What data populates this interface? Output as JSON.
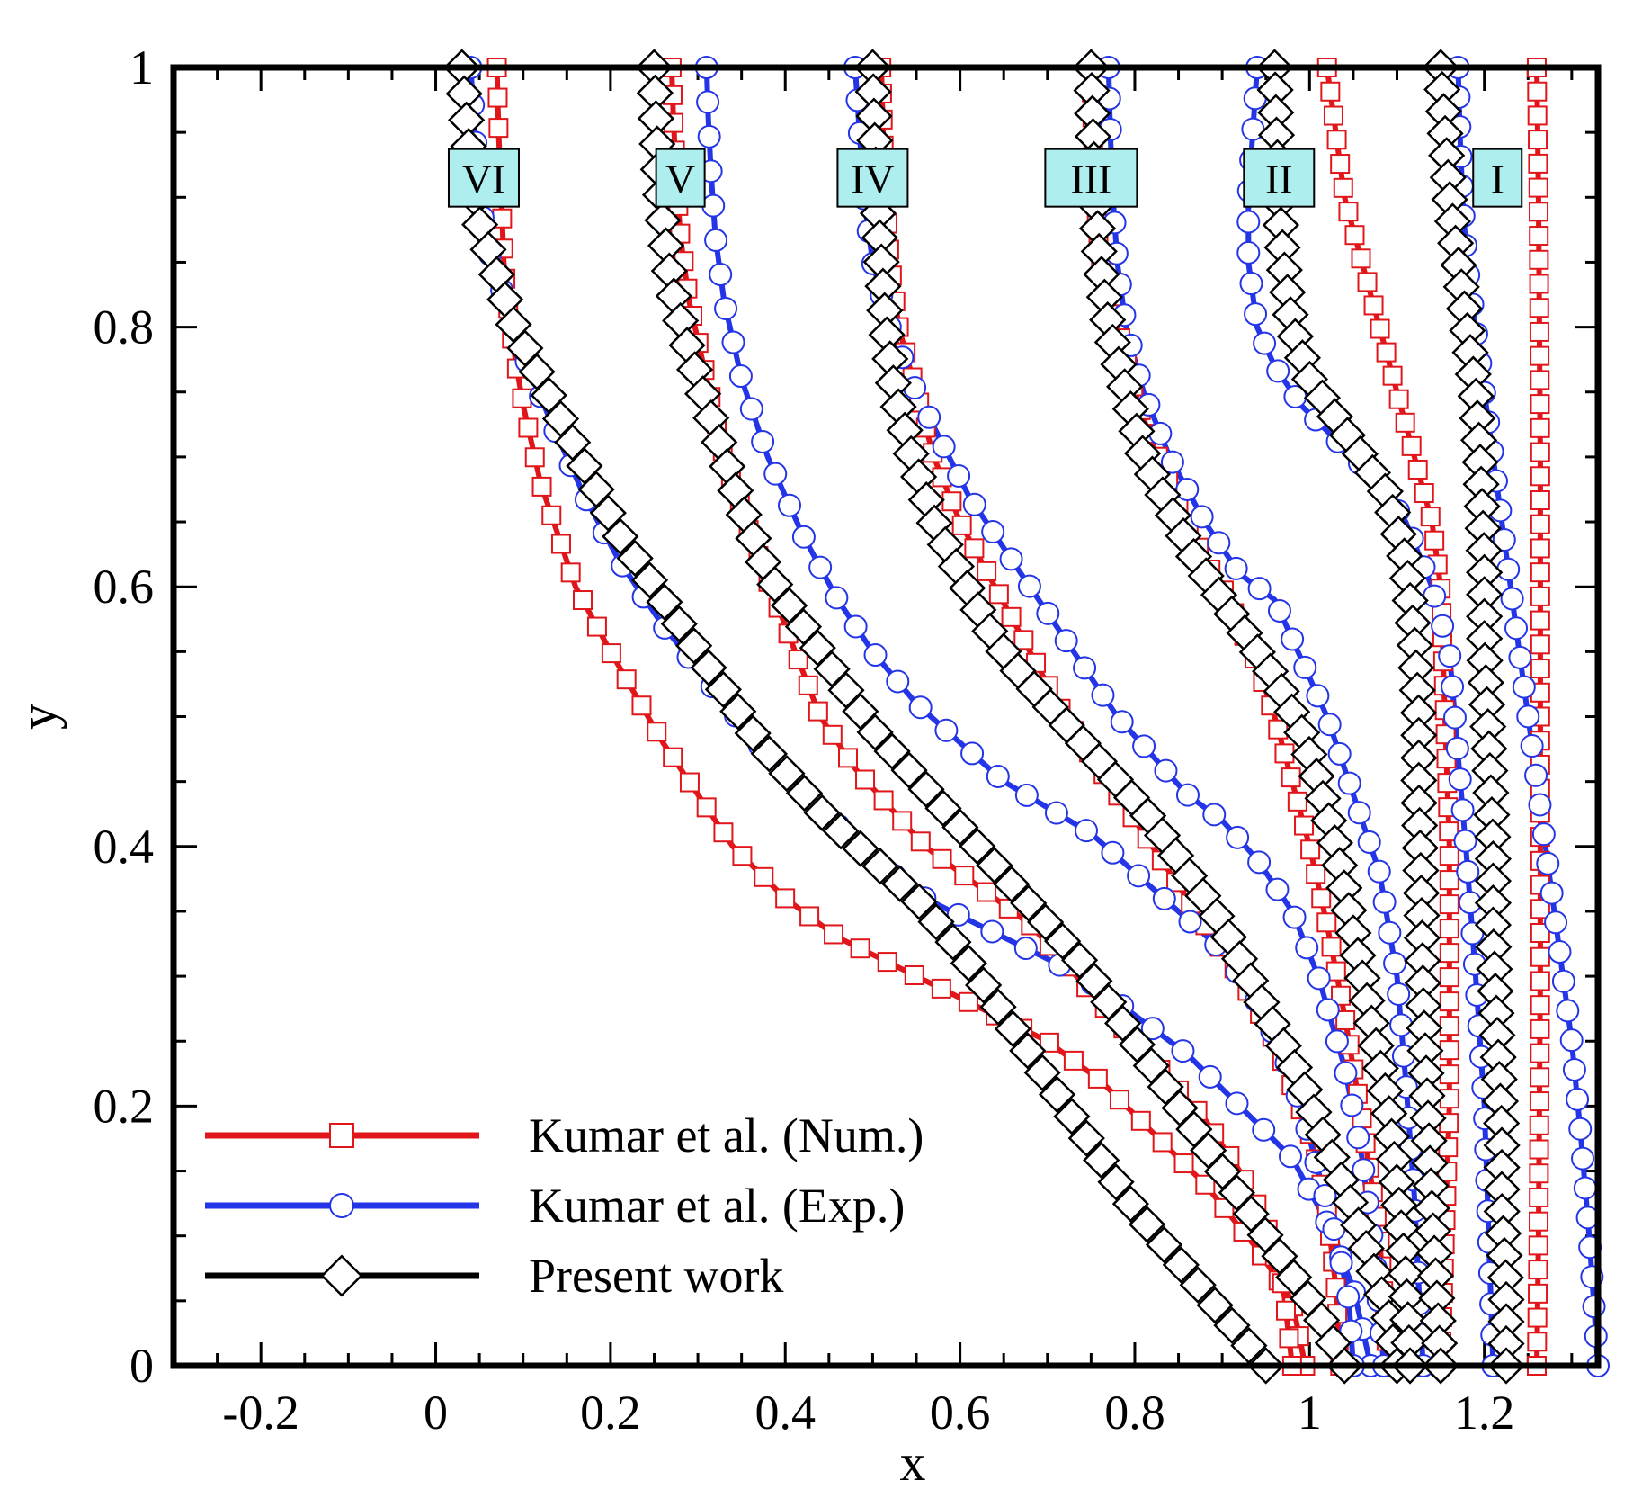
{
  "chart_data": {
    "type": "line",
    "title": "",
    "xlabel": "x",
    "ylabel": "y",
    "xlim": [
      -0.3,
      1.33
    ],
    "ylim": [
      0,
      1
    ],
    "x_ticks": [
      -0.2,
      0,
      0.2,
      0.4,
      0.6,
      0.8,
      1,
      1.2
    ],
    "x_tick_labels": [
      "-0.2",
      "0",
      "0.2",
      "0.4",
      "0.6",
      "0.8",
      "1",
      "1.2"
    ],
    "y_ticks": [
      0,
      0.2,
      0.4,
      0.6,
      0.8,
      1
    ],
    "y_tick_labels": [
      "0",
      "0.2",
      "0.4",
      "0.6",
      "0.8",
      "1"
    ],
    "legend_position": "bottom-left",
    "stations": [
      {
        "label": "VI",
        "x": 0.055,
        "y": 0.915
      },
      {
        "label": "V",
        "x": 0.28,
        "y": 0.915
      },
      {
        "label": "IV",
        "x": 0.5,
        "y": 0.915
      },
      {
        "label": "III",
        "x": 0.75,
        "y": 0.915
      },
      {
        "label": "II",
        "x": 0.965,
        "y": 0.915
      },
      {
        "label": "I",
        "x": 1.215,
        "y": 0.915
      }
    ],
    "series": [
      {
        "name": "Kumar et al. (Num.)",
        "color": "#e0161a",
        "marker": "square",
        "curves": [
          {
            "x": [
              0.07,
              0.072,
              0.075,
              0.078,
              0.085,
              0.1,
              0.12,
              0.16,
              0.2,
              0.26,
              0.3,
              0.34,
              0.4,
              0.46,
              0.52,
              0.58,
              0.64,
              0.7,
              0.76,
              0.82,
              0.88,
              0.94,
              0.98,
              0.995
            ],
            "y": [
              1,
              0.95,
              0.9,
              0.85,
              0.8,
              0.74,
              0.68,
              0.6,
              0.55,
              0.48,
              0.44,
              0.4,
              0.36,
              0.33,
              0.31,
              0.29,
              0.27,
              0.25,
              0.22,
              0.18,
              0.14,
              0.09,
              0.05,
              0
            ]
          },
          {
            "x": [
              0.27,
              0.272,
              0.275,
              0.28,
              0.29,
              0.31,
              0.33,
              0.36,
              0.4,
              0.44,
              0.48,
              0.52,
              0.56,
              0.6,
              0.64,
              0.68,
              0.72,
              0.76,
              0.8,
              0.84,
              0.88,
              0.92,
              0.95,
              0.97,
              0.98
            ],
            "y": [
              1,
              0.96,
              0.92,
              0.87,
              0.82,
              0.76,
              0.7,
              0.64,
              0.57,
              0.5,
              0.46,
              0.43,
              0.4,
              0.38,
              0.36,
              0.34,
              0.31,
              0.28,
              0.25,
              0.22,
              0.19,
              0.15,
              0.11,
              0.06,
              0
            ]
          },
          {
            "x": [
              0.51,
              0.512,
              0.515,
              0.52,
              0.53,
              0.55,
              0.57,
              0.6,
              0.64,
              0.68,
              0.72,
              0.76,
              0.8,
              0.84,
              0.88,
              0.92,
              0.96,
              1.0,
              1.02,
              1.03,
              1.035
            ],
            "y": [
              1,
              0.95,
              0.9,
              0.85,
              0.8,
              0.75,
              0.7,
              0.65,
              0.6,
              0.55,
              0.5,
              0.46,
              0.42,
              0.38,
              0.34,
              0.3,
              0.25,
              0.18,
              0.12,
              0.06,
              0
            ]
          },
          {
            "x": [
              0.75,
              0.752,
              0.755,
              0.76,
              0.78,
              0.8,
              0.82,
              0.84,
              0.86,
              0.88,
              0.9,
              0.92,
              0.94,
              0.96,
              0.98,
              1.0,
              1.02,
              1.04,
              1.06,
              1.08,
              1.09
            ],
            "y": [
              1,
              0.95,
              0.9,
              0.85,
              0.8,
              0.75,
              0.71,
              0.68,
              0.65,
              0.62,
              0.6,
              0.57,
              0.54,
              0.5,
              0.45,
              0.4,
              0.34,
              0.27,
              0.19,
              0.1,
              0
            ]
          },
          {
            "x": [
              1.02,
              1.03,
              1.04,
              1.06,
              1.08,
              1.1,
              1.12,
              1.14,
              1.15,
              1.155,
              1.16,
              1.16,
              1.16,
              1.155,
              1.15
            ],
            "y": [
              1,
              0.95,
              0.9,
              0.85,
              0.8,
              0.75,
              0.7,
              0.65,
              0.6,
              0.5,
              0.4,
              0.3,
              0.2,
              0.1,
              0
            ]
          },
          {
            "x": [
              1.26,
              1.262,
              1.263,
              1.264,
              1.264,
              1.264,
              1.264,
              1.264,
              1.263,
              1.262,
              1.26
            ],
            "y": [
              1,
              0.9,
              0.8,
              0.7,
              0.6,
              0.5,
              0.4,
              0.3,
              0.2,
              0.1,
              0
            ]
          }
        ]
      },
      {
        "name": "Kumar et al. (Exp.)",
        "color": "#2335e6",
        "marker": "circle",
        "curves": [
          {
            "x": [
              0.04,
              0.045,
              0.05,
              0.06,
              0.08,
              0.1,
              0.13,
              0.17,
              0.21,
              0.26,
              0.32,
              0.38,
              0.44,
              0.5,
              0.56,
              0.62,
              0.68,
              0.74,
              0.8,
              0.86,
              0.92,
              0.98,
              1.02,
              1.05,
              1.07
            ],
            "y": [
              1,
              0.95,
              0.9,
              0.86,
              0.82,
              0.78,
              0.73,
              0.67,
              0.62,
              0.57,
              0.52,
              0.47,
              0.43,
              0.39,
              0.36,
              0.34,
              0.32,
              0.3,
              0.27,
              0.24,
              0.2,
              0.16,
              0.11,
              0.06,
              0
            ]
          },
          {
            "x": [
              0.31,
              0.312,
              0.315,
              0.32,
              0.33,
              0.35,
              0.38,
              0.42,
              0.46,
              0.5,
              0.55,
              0.6,
              0.65,
              0.7,
              0.75,
              0.8,
              0.85,
              0.9,
              0.94,
              0.97,
              0.99,
              1.01,
              1.03,
              1.045,
              1.05
            ],
            "y": [
              1,
              0.96,
              0.92,
              0.87,
              0.82,
              0.76,
              0.7,
              0.64,
              0.59,
              0.55,
              0.51,
              0.48,
              0.45,
              0.43,
              0.41,
              0.38,
              0.35,
              0.32,
              0.28,
              0.24,
              0.2,
              0.15,
              0.1,
              0.05,
              0
            ]
          },
          {
            "x": [
              0.48,
              0.485,
              0.49,
              0.5,
              0.52,
              0.55,
              0.58,
              0.61,
              0.64,
              0.67,
              0.7,
              0.74,
              0.78,
              0.82,
              0.86,
              0.9,
              0.94,
              0.98,
              1.01,
              1.04,
              1.06,
              1.075,
              1.085
            ],
            "y": [
              1,
              0.95,
              0.9,
              0.85,
              0.8,
              0.75,
              0.71,
              0.67,
              0.64,
              0.61,
              0.58,
              0.54,
              0.5,
              0.47,
              0.44,
              0.42,
              0.39,
              0.35,
              0.3,
              0.23,
              0.16,
              0.08,
              0
            ]
          },
          {
            "x": [
              0.77,
              0.772,
              0.775,
              0.78,
              0.79,
              0.81,
              0.84,
              0.88,
              0.92,
              0.96,
              0.98,
              1.0,
              1.02,
              1.05,
              1.08,
              1.1,
              1.11,
              1.12,
              1.125,
              1.13
            ],
            "y": [
              1,
              0.95,
              0.9,
              0.85,
              0.8,
              0.75,
              0.7,
              0.65,
              0.61,
              0.59,
              0.56,
              0.53,
              0.5,
              0.44,
              0.38,
              0.3,
              0.22,
              0.13,
              0.06,
              0
            ]
          },
          {
            "x": [
              0.94,
              0.935,
              0.93,
              0.93,
              0.94,
              0.96,
              0.99,
              1.02,
              1.05,
              1.08,
              1.11,
              1.14,
              1.16,
              1.17,
              1.18,
              1.19,
              1.2,
              1.205,
              1.21
            ],
            "y": [
              1,
              0.95,
              0.9,
              0.85,
              0.8,
              0.77,
              0.74,
              0.72,
              0.7,
              0.68,
              0.65,
              0.6,
              0.55,
              0.47,
              0.39,
              0.3,
              0.2,
              0.1,
              0
            ]
          },
          {
            "x": [
              1.17,
              1.172,
              1.175,
              1.18,
              1.19,
              1.2,
              1.21,
              1.22,
              1.23,
              1.24,
              1.25,
              1.26,
              1.27,
              1.28,
              1.29,
              1.3,
              1.31,
              1.32,
              1.33
            ],
            "y": [
              1,
              0.95,
              0.9,
              0.85,
              0.8,
              0.75,
              0.7,
              0.65,
              0.6,
              0.55,
              0.5,
              0.45,
              0.4,
              0.35,
              0.3,
              0.25,
              0.18,
              0.1,
              0
            ]
          }
        ]
      },
      {
        "name": "Present work",
        "color": "#000000",
        "marker": "diamond",
        "curves": [
          {
            "x": [
              0.03,
              0.035,
              0.04,
              0.05,
              0.07,
              0.09,
              0.12,
              0.15,
              0.18,
              0.21,
              0.25,
              0.29,
              0.33,
              0.37,
              0.41,
              0.45,
              0.5,
              0.55,
              0.6,
              0.65,
              0.7,
              0.75,
              0.8,
              0.85,
              0.9,
              0.95
            ],
            "y": [
              1,
              0.96,
              0.92,
              0.88,
              0.84,
              0.8,
              0.76,
              0.72,
              0.68,
              0.64,
              0.6,
              0.56,
              0.52,
              0.48,
              0.45,
              0.42,
              0.39,
              0.36,
              0.32,
              0.27,
              0.22,
              0.17,
              0.12,
              0.08,
              0.04,
              0
            ]
          },
          {
            "x": [
              0.25,
              0.252,
              0.255,
              0.26,
              0.27,
              0.29,
              0.32,
              0.35,
              0.38,
              0.42,
              0.46,
              0.5,
              0.54,
              0.58,
              0.62,
              0.66,
              0.7,
              0.74,
              0.78,
              0.82,
              0.86,
              0.9,
              0.94,
              0.98,
              1.01,
              1.04
            ],
            "y": [
              1,
              0.96,
              0.92,
              0.88,
              0.83,
              0.78,
              0.72,
              0.66,
              0.61,
              0.57,
              0.53,
              0.49,
              0.46,
              0.43,
              0.4,
              0.37,
              0.34,
              0.31,
              0.27,
              0.23,
              0.19,
              0.15,
              0.11,
              0.07,
              0.04,
              0
            ]
          },
          {
            "x": [
              0.5,
              0.502,
              0.505,
              0.51,
              0.515,
              0.525,
              0.545,
              0.57,
              0.6,
              0.63,
              0.66,
              0.7,
              0.74,
              0.78,
              0.82,
              0.86,
              0.9,
              0.93,
              0.96,
              0.99,
              1.02,
              1.05,
              1.07,
              1.09,
              1.1
            ],
            "y": [
              1,
              0.95,
              0.9,
              0.85,
              0.8,
              0.75,
              0.7,
              0.65,
              0.61,
              0.57,
              0.54,
              0.51,
              0.48,
              0.45,
              0.42,
              0.38,
              0.34,
              0.3,
              0.26,
              0.22,
              0.17,
              0.12,
              0.08,
              0.04,
              0
            ]
          },
          {
            "x": [
              0.75,
              0.752,
              0.755,
              0.76,
              0.77,
              0.79,
              0.81,
              0.84,
              0.87,
              0.9,
              0.93,
              0.96,
              0.99,
              1.01,
              1.03,
              1.045,
              1.06,
              1.075,
              1.09,
              1.1,
              1.11,
              1.115
            ],
            "y": [
              1,
              0.95,
              0.9,
              0.85,
              0.8,
              0.75,
              0.7,
              0.66,
              0.62,
              0.59,
              0.56,
              0.53,
              0.49,
              0.45,
              0.4,
              0.35,
              0.3,
              0.25,
              0.2,
              0.14,
              0.07,
              0
            ]
          },
          {
            "x": [
              0.96,
              0.962,
              0.965,
              0.97,
              0.98,
              1.0,
              1.03,
              1.06,
              1.09,
              1.11,
              1.12,
              1.125,
              1.125,
              1.128,
              1.13,
              1.135,
              1.14,
              1.145,
              1.15
            ],
            "y": [
              1,
              0.95,
              0.9,
              0.85,
              0.8,
              0.76,
              0.73,
              0.7,
              0.67,
              0.62,
              0.56,
              0.5,
              0.44,
              0.36,
              0.28,
              0.2,
              0.12,
              0.06,
              0
            ]
          },
          {
            "x": [
              1.15,
              1.155,
              1.16,
              1.17,
              1.18,
              1.19,
              1.195,
              1.2,
              1.2,
              1.205,
              1.21,
              1.21,
              1.215,
              1.22,
              1.22,
              1.225,
              1.225
            ],
            "y": [
              1,
              0.95,
              0.9,
              0.85,
              0.8,
              0.75,
              0.7,
              0.62,
              0.55,
              0.48,
              0.4,
              0.33,
              0.25,
              0.18,
              0.12,
              0.06,
              0
            ]
          }
        ]
      }
    ]
  }
}
